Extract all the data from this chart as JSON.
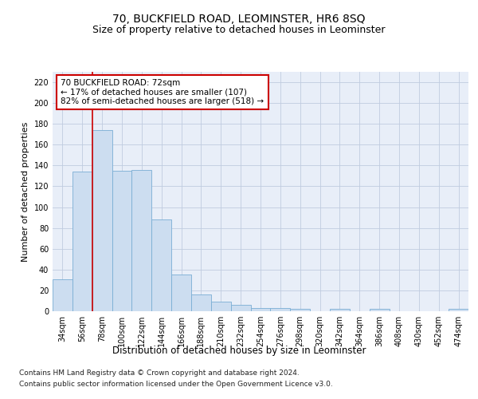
{
  "title": "70, BUCKFIELD ROAD, LEOMINSTER, HR6 8SQ",
  "subtitle": "Size of property relative to detached houses in Leominster",
  "xlabel": "Distribution of detached houses by size in Leominster",
  "ylabel": "Number of detached properties",
  "categories": [
    "34sqm",
    "56sqm",
    "78sqm",
    "100sqm",
    "122sqm",
    "144sqm",
    "166sqm",
    "188sqm",
    "210sqm",
    "232sqm",
    "254sqm",
    "276sqm",
    "298sqm",
    "320sqm",
    "342sqm",
    "364sqm",
    "386sqm",
    "408sqm",
    "430sqm",
    "452sqm",
    "474sqm"
  ],
  "values": [
    31,
    134,
    174,
    135,
    136,
    88,
    35,
    16,
    9,
    6,
    3,
    3,
    2,
    0,
    2,
    0,
    2,
    0,
    0,
    0,
    2
  ],
  "bar_color": "#ccddf0",
  "bar_edge_color": "#7aaed4",
  "vline_color": "#cc0000",
  "annotation_text": "70 BUCKFIELD ROAD: 72sqm\n← 17% of detached houses are smaller (107)\n82% of semi-detached houses are larger (518) →",
  "annotation_box_color": "white",
  "annotation_box_edge": "#cc0000",
  "ylim": [
    0,
    230
  ],
  "yticks": [
    0,
    20,
    40,
    60,
    80,
    100,
    120,
    140,
    160,
    180,
    200,
    220
  ],
  "grid_color": "#c0cce0",
  "background_color": "#e8eef8",
  "footer1": "Contains HM Land Registry data © Crown copyright and database right 2024.",
  "footer2": "Contains public sector information licensed under the Open Government Licence v3.0.",
  "title_fontsize": 10,
  "subtitle_fontsize": 9,
  "xlabel_fontsize": 8.5,
  "ylabel_fontsize": 8,
  "tick_fontsize": 7,
  "annotation_fontsize": 7.5,
  "footer_fontsize": 6.5
}
